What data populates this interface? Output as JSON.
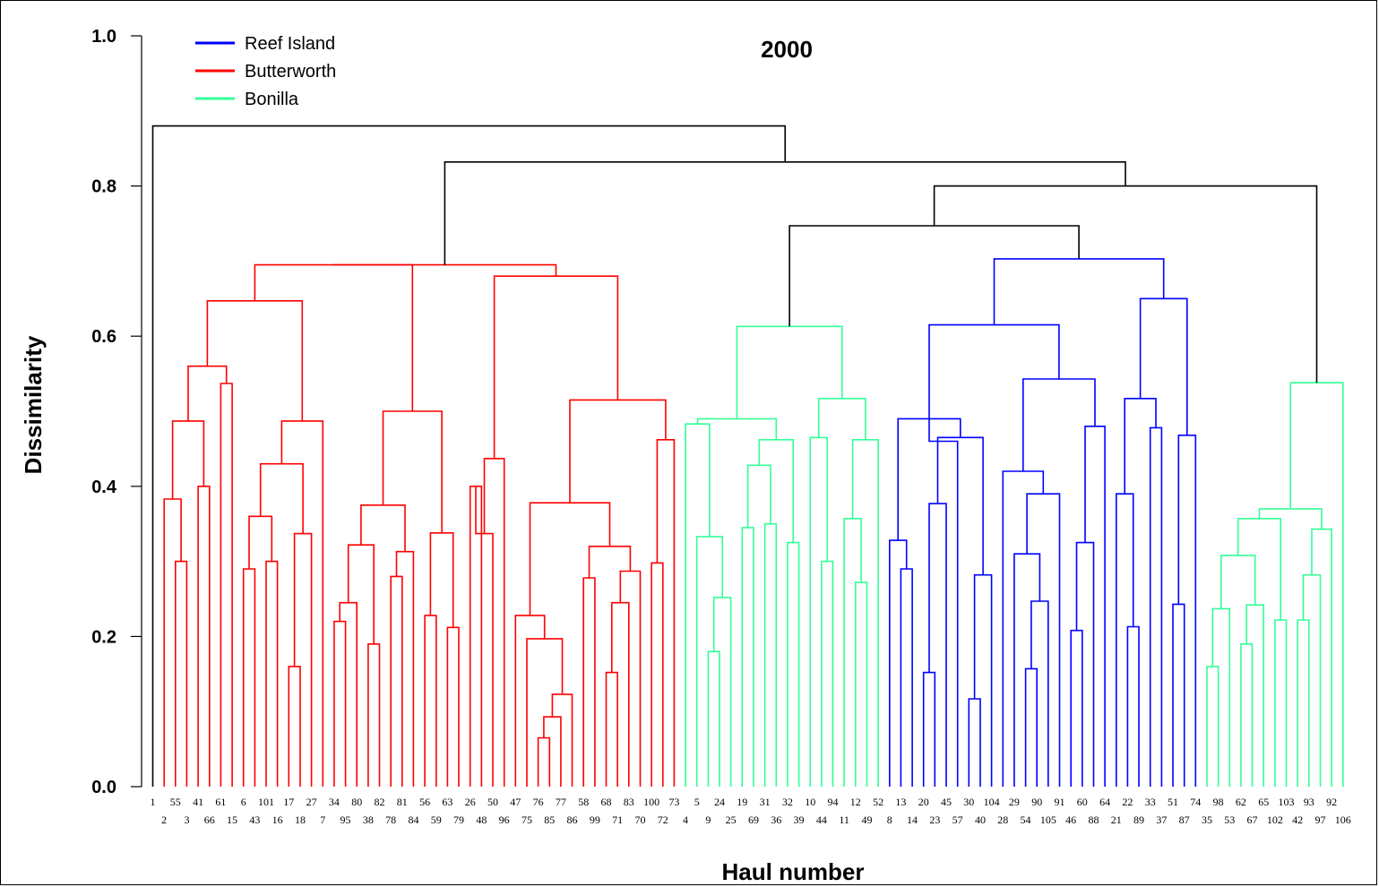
{
  "chart_data": {
    "type": "dendrogram",
    "title": "2000",
    "xlabel": "Haul number",
    "ylabel": "Dissimilarity",
    "ylim": [
      0,
      1.0
    ],
    "yticks": [
      "0.0",
      "0.2",
      "0.4",
      "0.6",
      "0.8",
      "1.0"
    ],
    "legend": {
      "position": "top-left",
      "entries": [
        {
          "label": "Reef Island",
          "color": "#0000ff"
        },
        {
          "label": "Butterworth",
          "color": "#ff0000"
        },
        {
          "label": "Bonilla",
          "color": "#33ff99"
        }
      ]
    },
    "colors": {
      "red": "#ff0000",
      "green": "#33ff99",
      "blue": "#0000ff",
      "black": "#000000"
    },
    "leaves": [
      "1",
      "2",
      "55",
      "3",
      "41",
      "66",
      "61",
      "15",
      "6",
      "43",
      "101",
      "16",
      "17",
      "18",
      "27",
      "7",
      "34",
      "95",
      "80",
      "38",
      "82",
      "78",
      "81",
      "84",
      "56",
      "59",
      "63",
      "79",
      "26",
      "48",
      "50",
      "96",
      "47",
      "75",
      "76",
      "85",
      "77",
      "86",
      "58",
      "99",
      "68",
      "71",
      "83",
      "70",
      "100",
      "72",
      "73",
      "4",
      "5",
      "9",
      "24",
      "25",
      "19",
      "69",
      "31",
      "36",
      "32",
      "39",
      "10",
      "44",
      "94",
      "11",
      "12",
      "49",
      "52",
      "8",
      "13",
      "14",
      "20",
      "23",
      "45",
      "57",
      "30",
      "40",
      "104",
      "28",
      "29",
      "54",
      "90",
      "105",
      "91",
      "46",
      "60",
      "88",
      "64",
      "21",
      "22",
      "89",
      "33",
      "37",
      "51",
      "87",
      "74",
      "35",
      "98",
      "53",
      "62",
      "67",
      "65",
      "102",
      "103",
      "42",
      "93",
      "97",
      "92",
      "106"
    ],
    "merges": [
      {
        "id": "A1",
        "left": "55",
        "right": "3",
        "height": 0.3,
        "color": "red"
      },
      {
        "id": "A2",
        "left": "2",
        "right": "A1",
        "height": 0.383,
        "color": "red"
      },
      {
        "id": "A3",
        "left": "41",
        "right": "66",
        "height": 0.4,
        "color": "red"
      },
      {
        "id": "A4",
        "left": "A2",
        "right": "A3",
        "height": 0.487,
        "color": "red"
      },
      {
        "id": "A5",
        "left": "61",
        "right": "15",
        "height": 0.537,
        "color": "red"
      },
      {
        "id": "A6",
        "left": "A4",
        "right": "A5",
        "height": 0.56,
        "color": "red"
      },
      {
        "id": "A7",
        "left": "6",
        "right": "43",
        "height": 0.29,
        "color": "red"
      },
      {
        "id": "A8",
        "left": "101",
        "right": "16",
        "height": 0.3,
        "color": "red"
      },
      {
        "id": "A9",
        "left": "17",
        "right": "18",
        "height": 0.16,
        "color": "red"
      },
      {
        "id": "A10",
        "left": "A7",
        "right": "A8",
        "height": 0.36,
        "color": "red"
      },
      {
        "id": "A11",
        "left": "A9",
        "right": "27",
        "height": 0.337,
        "color": "red"
      },
      {
        "id": "A12",
        "left": "A10",
        "right": "A11",
        "height": 0.43,
        "color": "red"
      },
      {
        "id": "A13",
        "left": "A12",
        "right": "7",
        "height": 0.487,
        "color": "red"
      },
      {
        "id": "A14",
        "left": "A6",
        "right": "A13",
        "height": 0.647,
        "color": "red"
      },
      {
        "id": "B1",
        "left": "34",
        "right": "95",
        "height": 0.22,
        "color": "red"
      },
      {
        "id": "B2",
        "left": "B1",
        "right": "80",
        "height": 0.245,
        "color": "red"
      },
      {
        "id": "B3",
        "left": "38",
        "right": "82",
        "height": 0.19,
        "color": "red"
      },
      {
        "id": "B4",
        "left": "B2",
        "right": "B3",
        "height": 0.322,
        "color": "red"
      },
      {
        "id": "B5",
        "left": "78",
        "right": "81",
        "height": 0.28,
        "color": "red"
      },
      {
        "id": "B6",
        "left": "B5",
        "right": "84",
        "height": 0.313,
        "color": "red"
      },
      {
        "id": "B7",
        "left": "B4",
        "right": "B6",
        "height": 0.375,
        "color": "red"
      },
      {
        "id": "B8",
        "left": "56",
        "right": "59",
        "height": 0.228,
        "color": "red"
      },
      {
        "id": "B9",
        "left": "63",
        "right": "79",
        "height": 0.212,
        "color": "red"
      },
      {
        "id": "B10",
        "left": "B8",
        "right": "B9",
        "height": 0.338,
        "color": "red"
      },
      {
        "id": "B11",
        "left": "B7",
        "right": "B10",
        "height": 0.5,
        "color": "red"
      },
      {
        "id": "B12",
        "left": "A14",
        "right": "B11",
        "height": 0.695,
        "color": "red"
      },
      {
        "id": "C1",
        "left": "26",
        "right": "48",
        "height": 0.4,
        "color": "red"
      },
      {
        "id": "C2",
        "left": "C1",
        "right": "50",
        "height": 0.337,
        "color": "red"
      },
      {
        "id": "C3",
        "left": "C2",
        "right": "96",
        "height": 0.437,
        "color": "red"
      },
      {
        "id": "C4",
        "left": "76",
        "right": "85",
        "height": 0.065,
        "color": "red"
      },
      {
        "id": "C5",
        "left": "C4",
        "right": "77",
        "height": 0.093,
        "color": "red"
      },
      {
        "id": "C6",
        "left": "C5",
        "right": "86",
        "height": 0.123,
        "color": "red"
      },
      {
        "id": "C7",
        "left": "75",
        "right": "C6",
        "height": 0.197,
        "color": "red"
      },
      {
        "id": "C8",
        "left": "47",
        "right": "C7",
        "height": 0.228,
        "color": "red"
      },
      {
        "id": "C9",
        "left": "58",
        "right": "99",
        "height": 0.278,
        "color": "red"
      },
      {
        "id": "C10",
        "left": "68",
        "right": "71",
        "height": 0.152,
        "color": "red"
      },
      {
        "id": "C11",
        "left": "C10",
        "right": "83",
        "height": 0.245,
        "color": "red"
      },
      {
        "id": "C12",
        "left": "C11",
        "right": "70",
        "height": 0.287,
        "color": "red"
      },
      {
        "id": "C13",
        "left": "C9",
        "right": "C12",
        "height": 0.32,
        "color": "red"
      },
      {
        "id": "C14",
        "left": "C8",
        "right": "C13",
        "height": 0.378,
        "color": "red"
      },
      {
        "id": "C15",
        "left": "100",
        "right": "72",
        "height": 0.298,
        "color": "red"
      },
      {
        "id": "C16",
        "left": "C15",
        "right": "73",
        "height": 0.462,
        "color": "red"
      },
      {
        "id": "C17",
        "left": "C14",
        "right": "C16",
        "height": 0.515,
        "color": "red"
      },
      {
        "id": "C18",
        "left": "C3",
        "right": "C17",
        "height": 0.68,
        "color": "red"
      },
      {
        "id": "C19",
        "left": "B12",
        "right": "C18",
        "height": 0.695,
        "color": "red"
      },
      {
        "id": "D1",
        "left": "9",
        "right": "24",
        "height": 0.18,
        "color": "green"
      },
      {
        "id": "D2",
        "left": "D1",
        "right": "25",
        "height": 0.252,
        "color": "green"
      },
      {
        "id": "D3",
        "left": "5",
        "right": "D2",
        "height": 0.333,
        "color": "green"
      },
      {
        "id": "D4",
        "left": "4",
        "right": "D3",
        "height": 0.483,
        "color": "green"
      },
      {
        "id": "D5",
        "left": "19",
        "right": "69",
        "height": 0.345,
        "color": "green"
      },
      {
        "id": "D6",
        "left": "31",
        "right": "36",
        "height": 0.35,
        "color": "green"
      },
      {
        "id": "D7",
        "left": "D5",
        "right": "D6",
        "height": 0.428,
        "color": "green"
      },
      {
        "id": "D8",
        "left": "32",
        "right": "39",
        "height": 0.325,
        "color": "green"
      },
      {
        "id": "D9",
        "left": "D7",
        "right": "D8",
        "height": 0.462,
        "color": "green"
      },
      {
        "id": "D10",
        "left": "D4",
        "right": "D9",
        "height": 0.49,
        "color": "green"
      },
      {
        "id": "D11",
        "left": "44",
        "right": "94",
        "height": 0.3,
        "color": "green"
      },
      {
        "id": "D12",
        "left": "10",
        "right": "D11",
        "height": 0.465,
        "color": "green"
      },
      {
        "id": "D13",
        "left": "12",
        "right": "49",
        "height": 0.272,
        "color": "green"
      },
      {
        "id": "D14",
        "left": "11",
        "right": "D13",
        "height": 0.357,
        "color": "green"
      },
      {
        "id": "D15",
        "left": "D14",
        "right": "52",
        "height": 0.462,
        "color": "green"
      },
      {
        "id": "D16",
        "left": "D12",
        "right": "D15",
        "height": 0.517,
        "color": "green"
      },
      {
        "id": "D17",
        "left": "D10",
        "right": "D16",
        "height": 0.613,
        "color": "green"
      },
      {
        "id": "E1",
        "left": "13",
        "right": "14",
        "height": 0.29,
        "color": "blue"
      },
      {
        "id": "E2",
        "left": "8",
        "right": "E1",
        "height": 0.328,
        "color": "blue"
      },
      {
        "id": "E3",
        "left": "20",
        "right": "23",
        "height": 0.152,
        "color": "blue"
      },
      {
        "id": "E4",
        "left": "E3",
        "right": "45",
        "height": 0.377,
        "color": "blue"
      },
      {
        "id": "E5",
        "left": "30",
        "right": "40",
        "height": 0.117,
        "color": "blue"
      },
      {
        "id": "E6",
        "left": "E5",
        "right": "104",
        "height": 0.282,
        "color": "blue"
      },
      {
        "id": "E7",
        "left": "E4",
        "right": "E6",
        "height": 0.465,
        "color": "blue"
      },
      {
        "id": "E8",
        "left": "E2",
        "right": "E7",
        "height": 0.49,
        "color": "blue"
      },
      {
        "id": "E9",
        "left": "E8",
        "right": "57",
        "height": 0.46,
        "color": "blue"
      },
      {
        "id": "F1",
        "left": "54",
        "right": "90",
        "height": 0.157,
        "color": "blue"
      },
      {
        "id": "F2",
        "left": "F1",
        "right": "105",
        "height": 0.247,
        "color": "blue"
      },
      {
        "id": "F3",
        "left": "29",
        "right": "F2",
        "height": 0.31,
        "color": "blue"
      },
      {
        "id": "F4",
        "left": "F3",
        "right": "91",
        "height": 0.39,
        "color": "blue"
      },
      {
        "id": "F5",
        "left": "28",
        "right": "F4",
        "height": 0.42,
        "color": "blue"
      },
      {
        "id": "F6",
        "left": "46",
        "right": "60",
        "height": 0.208,
        "color": "blue"
      },
      {
        "id": "F7",
        "left": "F6",
        "right": "88",
        "height": 0.325,
        "color": "blue"
      },
      {
        "id": "F8",
        "left": "F7",
        "right": "64",
        "height": 0.48,
        "color": "blue"
      },
      {
        "id": "F9",
        "left": "F5",
        "right": "F8",
        "height": 0.543,
        "color": "blue"
      },
      {
        "id": "F10",
        "left": "E8",
        "right": "F9",
        "height": 0.615,
        "color": "blue"
      },
      {
        "id": "G1",
        "left": "22",
        "right": "89",
        "height": 0.213,
        "color": "blue"
      },
      {
        "id": "G2",
        "left": "21",
        "right": "G1",
        "height": 0.39,
        "color": "blue"
      },
      {
        "id": "G3",
        "left": "33",
        "right": "37",
        "height": 0.478,
        "color": "blue"
      },
      {
        "id": "G4",
        "left": "G2",
        "right": "G3",
        "height": 0.517,
        "color": "blue"
      },
      {
        "id": "G5",
        "left": "51",
        "right": "87",
        "height": 0.243,
        "color": "blue"
      },
      {
        "id": "G6",
        "left": "G5",
        "right": "74",
        "height": 0.468,
        "color": "blue"
      },
      {
        "id": "G7",
        "left": "G4",
        "right": "G6",
        "height": 0.65,
        "color": "blue"
      },
      {
        "id": "G8",
        "left": "F10",
        "right": "G7",
        "height": 0.703,
        "color": "blue"
      },
      {
        "id": "H1",
        "left": "35",
        "right": "98",
        "height": 0.16,
        "color": "green"
      },
      {
        "id": "H2",
        "left": "H1",
        "right": "53",
        "height": 0.237,
        "color": "green"
      },
      {
        "id": "H3",
        "left": "62",
        "right": "67",
        "height": 0.19,
        "color": "green"
      },
      {
        "id": "H4",
        "left": "H3",
        "right": "65",
        "height": 0.242,
        "color": "green"
      },
      {
        "id": "H5",
        "left": "H2",
        "right": "H4",
        "height": 0.308,
        "color": "green"
      },
      {
        "id": "H6",
        "left": "102",
        "right": "103",
        "height": 0.222,
        "color": "green"
      },
      {
        "id": "H7",
        "left": "H5",
        "right": "H6",
        "height": 0.357,
        "color": "green"
      },
      {
        "id": "H8",
        "left": "42",
        "right": "93",
        "height": 0.222,
        "color": "green"
      },
      {
        "id": "H9",
        "left": "H8",
        "right": "97",
        "height": 0.282,
        "color": "green"
      },
      {
        "id": "H10",
        "left": "H9",
        "right": "92",
        "height": 0.343,
        "color": "green"
      },
      {
        "id": "H11",
        "left": "H7",
        "right": "H10",
        "height": 0.37,
        "color": "green"
      },
      {
        "id": "H12",
        "left": "H11",
        "right": "106",
        "height": 0.538,
        "color": "green"
      },
      {
        "id": "K1",
        "left": "D17",
        "right": "G8",
        "height": 0.747,
        "color": "black"
      },
      {
        "id": "K2",
        "left": "K1",
        "right": "H12",
        "height": 0.8,
        "color": "black"
      },
      {
        "id": "K3",
        "left": "C19",
        "right": "K2",
        "height": 0.832,
        "color": "black"
      },
      {
        "id": "K4",
        "left": "1",
        "right": "K3",
        "height": 0.88,
        "color": "black"
      }
    ]
  }
}
